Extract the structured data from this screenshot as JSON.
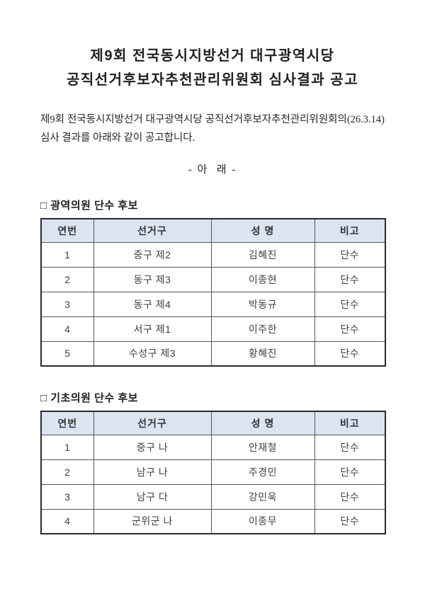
{
  "colors": {
    "header_bg": "#dce4f2",
    "border_strong": "#2b2b2b",
    "border_inner": "#555555",
    "text_dark": "#1f1f1f"
  },
  "document": {
    "title_line1": "제9회 전국동시지방선거 대구광역시당",
    "title_line2": "공직선거후보자추천관리위원회 심사결과 공고",
    "body_line1": "제9회 전국동시지방선거 대구광역시당 공직선거후보자추천관리위원회의(26.3.14)",
    "body_line2": "심사 결과를 아래와 같이 공고합니다.",
    "divider_label": "- 아  래 -",
    "sections": [
      {
        "heading": "□ 광역의원 단수 후보",
        "table": {
          "headers": [
            "연번",
            "선거구",
            "성 명",
            "비고"
          ],
          "rows": [
            [
              "1",
              "중구 제2",
              "김혜진",
              "단수"
            ],
            [
              "2",
              "동구 제3",
              "이종현",
              "단수"
            ],
            [
              "3",
              "동구 제4",
              "박동규",
              "단수"
            ],
            [
              "4",
              "서구 제1",
              "이주한",
              "단수"
            ],
            [
              "5",
              "수성구 제3",
              "황혜진",
              "단수"
            ]
          ]
        }
      },
      {
        "heading": "□ 기초의원 단수 후보",
        "table": {
          "headers": [
            "연번",
            "선거구",
            "성 명",
            "비고"
          ],
          "rows": [
            [
              "1",
              "중구 나",
              "안재철",
              "단수"
            ],
            [
              "2",
              "남구 나",
              "주경민",
              "단수"
            ],
            [
              "3",
              "남구 다",
              "강민욱",
              "단수"
            ],
            [
              "4",
              "군위군 나",
              "이종무",
              "단수"
            ]
          ]
        }
      }
    ]
  }
}
